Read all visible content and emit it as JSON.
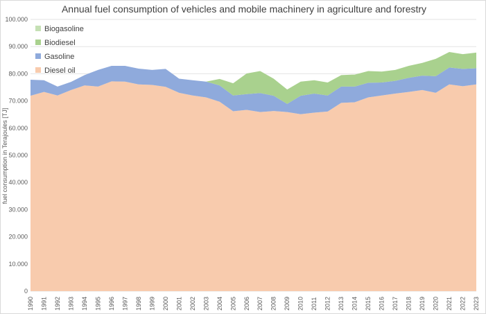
{
  "chart_data": {
    "type": "area",
    "stacked": true,
    "title": "Annual fuel consumption of vehicles and mobile machinery in agriculture and forestry",
    "xlabel": "",
    "ylabel": "fuel consumption in Terajoules [TJ]",
    "ylim": [
      0,
      100000
    ],
    "yticks": [
      0,
      10000,
      20000,
      30000,
      40000,
      50000,
      60000,
      70000,
      80000,
      90000,
      100000
    ],
    "ytick_labels": [
      "0",
      "10.000",
      "20.000",
      "30.000",
      "40.000",
      "50.000",
      "60.000",
      "70.000",
      "80.000",
      "90.000",
      "100.000"
    ],
    "grid": true,
    "legend_position": "top-left",
    "categories": [
      "1990",
      "1991",
      "1992",
      "1993",
      "1994",
      "1995",
      "1996",
      "1997",
      "1998",
      "1999",
      "2000",
      "2001",
      "2002",
      "2003",
      "2004",
      "2005",
      "2006",
      "2007",
      "2008",
      "2009",
      "2010",
      "2011",
      "2012",
      "2013",
      "2014",
      "2015",
      "2016",
      "2017",
      "2018",
      "2019",
      "2020",
      "2021",
      "2022",
      "2023"
    ],
    "series": [
      {
        "name": "Diesel oil",
        "color": "#F8CBAD",
        "values": [
          71900,
          73300,
          72000,
          74000,
          75700,
          75300,
          77200,
          77100,
          76100,
          75900,
          75200,
          73000,
          72000,
          71300,
          69700,
          66200,
          66700,
          65900,
          66300,
          65900,
          65100,
          65700,
          66100,
          69300,
          69500,
          71300,
          72000,
          72700,
          73300,
          74000,
          73000,
          76100,
          75400,
          76100
        ]
      },
      {
        "name": "Gasoline",
        "color": "#8FAADC",
        "values": [
          5900,
          4300,
          3300,
          3000,
          3800,
          6100,
          5700,
          5800,
          5800,
          5500,
          6600,
          5200,
          5600,
          5800,
          6000,
          5800,
          5800,
          7000,
          5600,
          3000,
          6800,
          7000,
          5900,
          6000,
          5800,
          5400,
          4800,
          4700,
          5200,
          5300,
          6100,
          6200,
          6400,
          5900
        ]
      },
      {
        "name": "Biodiesel",
        "color": "#A9D18E",
        "values": [
          0,
          0,
          0,
          0,
          0,
          0,
          0,
          0,
          0,
          0,
          0,
          0,
          0,
          0,
          2400,
          4500,
          7600,
          8100,
          6300,
          5300,
          5200,
          4900,
          4800,
          4200,
          4400,
          4300,
          4000,
          4000,
          4400,
          4700,
          6400,
          5700,
          5400,
          5800
        ]
      },
      {
        "name": "Biogasoline",
        "color": "#C5E0B4",
        "values": [
          0,
          0,
          0,
          0,
          0,
          0,
          0,
          0,
          0,
          0,
          0,
          0,
          0,
          0,
          0,
          0,
          0,
          0,
          0,
          0,
          0,
          0,
          0,
          0,
          0,
          0,
          0,
          0,
          0,
          0,
          0,
          0,
          0,
          0
        ]
      }
    ],
    "legend_order": [
      "Biogasoline",
      "Biodiesel",
      "Gasoline",
      "Diesel oil"
    ]
  }
}
